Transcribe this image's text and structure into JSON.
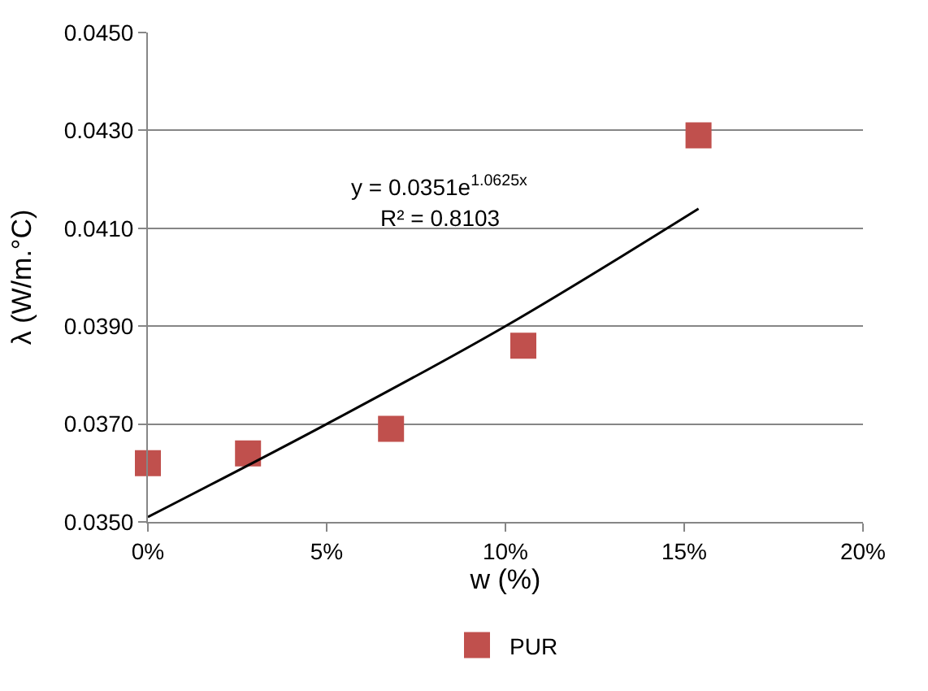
{
  "chart_data": {
    "type": "scatter",
    "xlabel": "w (%)",
    "ylabel": "λ (W/m.°C)",
    "series": [
      {
        "name": "PUR",
        "color": "#c0504d",
        "marker": "square",
        "x": [
          0.0,
          0.028,
          0.068,
          0.105,
          0.154
        ],
        "values": [
          0.0362,
          0.0364,
          0.0369,
          0.0386,
          0.0429
        ]
      },
      {
        "type": "line",
        "color": "#000000",
        "line_style": "solid",
        "x": [
          0.0,
          0.05,
          0.1,
          0.154
        ],
        "values": [
          0.0351,
          0.037,
          0.039,
          0.0414
        ]
      }
    ],
    "xlim": [
      0,
      0.2
    ],
    "xticks": [
      {
        "value": 0,
        "label": "0%"
      },
      {
        "value": 0.05,
        "label": "5%"
      },
      {
        "value": 0.1,
        "label": "10%"
      },
      {
        "value": 0.15,
        "label": "15%"
      },
      {
        "value": 0.2,
        "label": "20%"
      }
    ],
    "ylim": [
      0.035,
      0.045
    ],
    "yticks": [
      {
        "value": 0.035,
        "label": "0.0350"
      },
      {
        "value": 0.037,
        "label": "0.0370"
      },
      {
        "value": 0.039,
        "label": "0.0390"
      },
      {
        "value": 0.041,
        "label": "0.0410"
      },
      {
        "value": 0.043,
        "label": "0.0430"
      },
      {
        "value": 0.045,
        "label": "0.0450"
      }
    ],
    "grid": "y",
    "legend": "bottom",
    "annotations": [
      "y = 0.0351e$^{1.0625x}$",
      "R² = 0.8103"
    ]
  }
}
